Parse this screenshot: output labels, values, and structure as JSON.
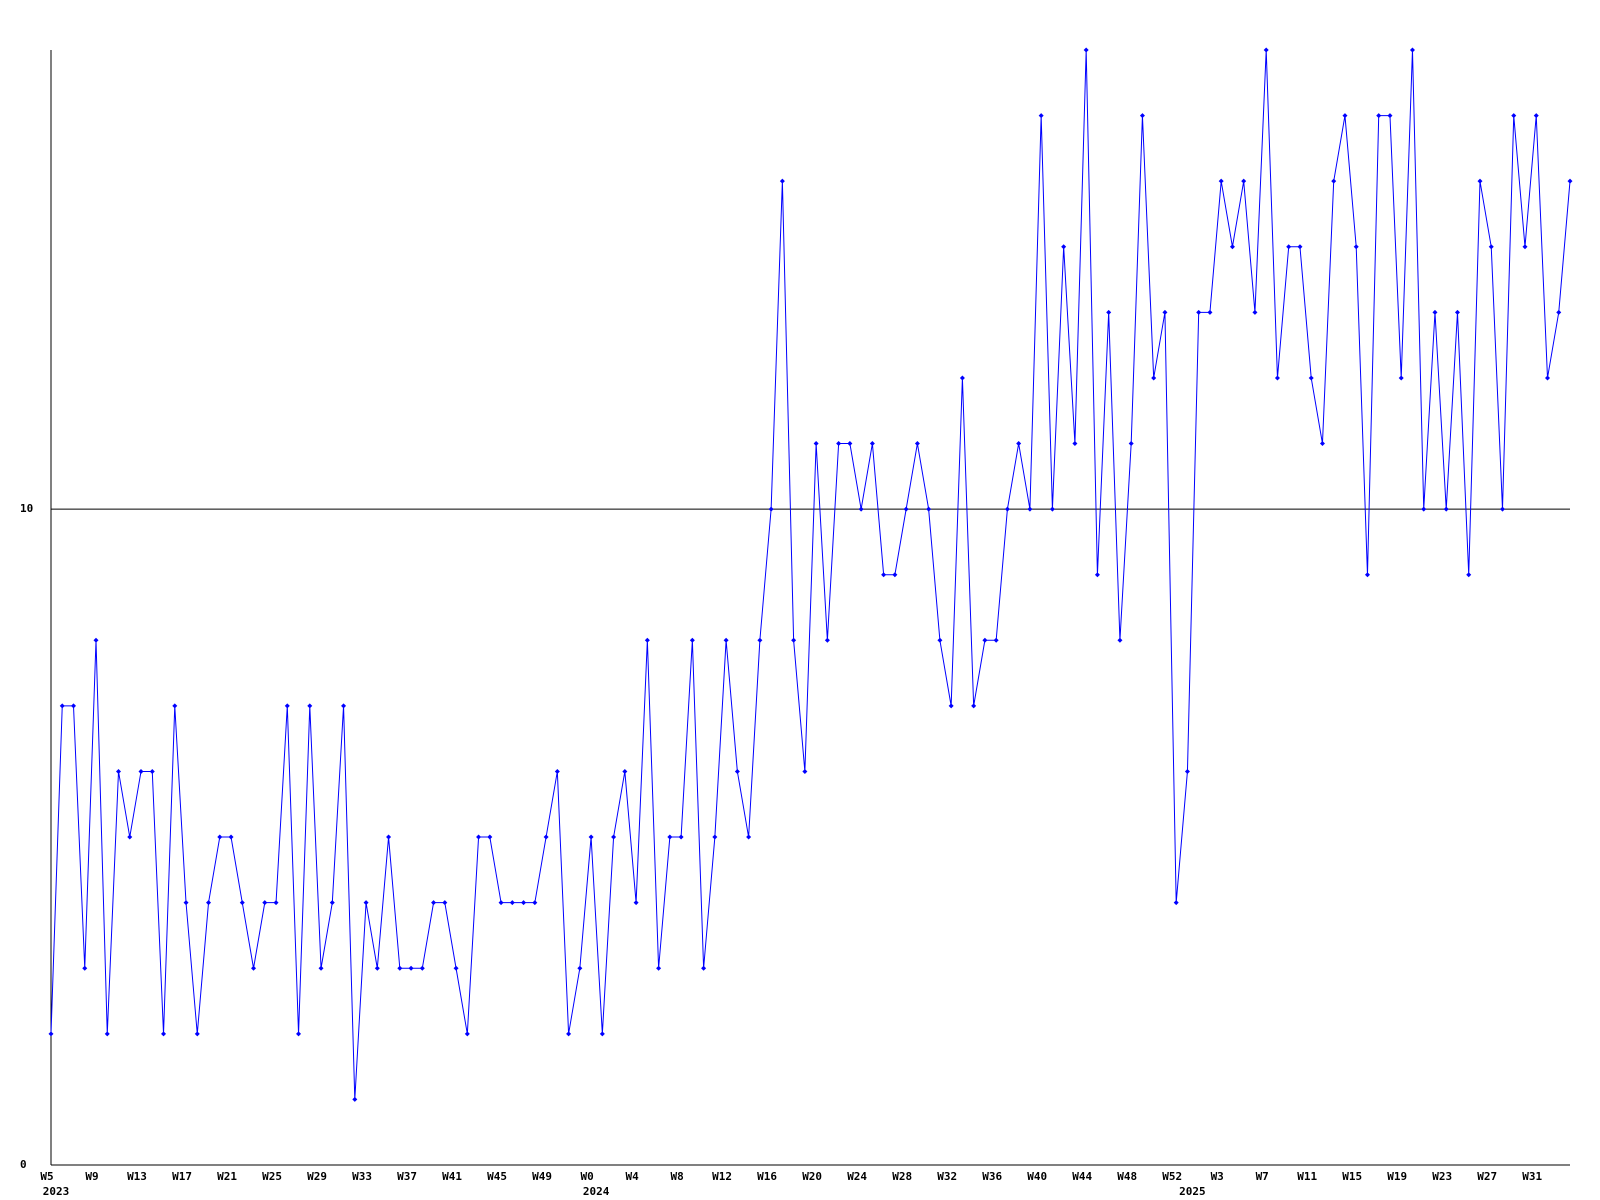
{
  "chart_data": {
    "type": "line",
    "categories": [
      "W5",
      null,
      null,
      null,
      "W9",
      null,
      null,
      null,
      "W13",
      null,
      null,
      null,
      "W17",
      null,
      null,
      null,
      "W21",
      null,
      null,
      null,
      "W25",
      null,
      null,
      null,
      "W29",
      null,
      null,
      null,
      "W33",
      null,
      null,
      null,
      "W37",
      null,
      null,
      null,
      "W41",
      null,
      null,
      null,
      "W45",
      null,
      null,
      null,
      "W49",
      null,
      null,
      null,
      "W0",
      null,
      null,
      null,
      "W4",
      null,
      null,
      null,
      "W8",
      null,
      null,
      null,
      "W12",
      null,
      null,
      null,
      "W16",
      null,
      null,
      null,
      "W20",
      null,
      null,
      null,
      "W24",
      null,
      null,
      null,
      "W28",
      null,
      null,
      null,
      "W32",
      null,
      null,
      null,
      "W36",
      null,
      null,
      null,
      "W40",
      null,
      null,
      null,
      "W44",
      null,
      null,
      null,
      "W48",
      null,
      null,
      null,
      "W52",
      null,
      null,
      null,
      "W3",
      null,
      null,
      null,
      "W7",
      null,
      null,
      null,
      "W11",
      null,
      null,
      null,
      "W15",
      null,
      null,
      null,
      "W19",
      null,
      null,
      null,
      "W23",
      null,
      null,
      null,
      "W27",
      null,
      null,
      null,
      "W31",
      null,
      null,
      null
    ],
    "years": [
      "2023",
      null,
      null,
      null,
      null,
      null,
      null,
      null,
      null,
      null,
      null,
      null,
      null,
      null,
      null,
      null,
      null,
      null,
      null,
      null,
      null,
      null,
      null,
      null,
      null,
      null,
      null,
      null,
      null,
      null,
      null,
      null,
      null,
      null,
      null,
      null,
      null,
      null,
      null,
      null,
      null,
      null,
      null,
      null,
      null,
      null,
      null,
      null,
      "2024",
      null,
      null,
      null,
      null,
      null,
      null,
      null,
      null,
      null,
      null,
      null,
      null,
      null,
      null,
      null,
      null,
      null,
      null,
      null,
      null,
      null,
      null,
      null,
      null,
      null,
      null,
      null,
      null,
      null,
      null,
      null,
      null,
      null,
      null,
      null,
      null,
      null,
      null,
      null,
      null,
      null,
      null,
      null,
      null,
      null,
      null,
      null,
      null,
      null,
      null,
      null,
      null,
      "2025",
      null,
      null,
      null,
      null,
      null,
      null,
      null,
      null,
      null,
      null,
      null,
      null,
      null,
      null,
      null,
      null,
      null,
      null,
      null,
      null,
      null,
      null,
      null,
      null,
      null,
      null,
      null,
      null,
      null,
      null,
      null,
      null,
      null
    ],
    "values": [
      2,
      7,
      7,
      3,
      8,
      2,
      6,
      5,
      6,
      6,
      2,
      7,
      4,
      2,
      4,
      5,
      5,
      4,
      3,
      4,
      4,
      7,
      2,
      7,
      3,
      4,
      7,
      1,
      4,
      3,
      5,
      3,
      3,
      3,
      4,
      4,
      3,
      2,
      5,
      5,
      4,
      4,
      4,
      4,
      5,
      6,
      2,
      3,
      5,
      2,
      5,
      6,
      4,
      8,
      3,
      5,
      5,
      8,
      3,
      5,
      8,
      6,
      5,
      8,
      10,
      15,
      8,
      6,
      11,
      8,
      11,
      11,
      10,
      11,
      9,
      9,
      10,
      11,
      10,
      8,
      7,
      12,
      7,
      8,
      8,
      10,
      11,
      10,
      16,
      10,
      14,
      11,
      17,
      9,
      13,
      8,
      11,
      16,
      12,
      13,
      4,
      6,
      13,
      13,
      15,
      14,
      15,
      13,
      17,
      12,
      14,
      14,
      12,
      11,
      15,
      16,
      14,
      9,
      16,
      16,
      12,
      17,
      10,
      13,
      10,
      13,
      9,
      15,
      14,
      10,
      16,
      14,
      16,
      12,
      13,
      15
    ],
    "color": "#0000ff",
    "ylim": [
      0,
      17
    ],
    "yticks": [
      0,
      10
    ],
    "grid": true
  }
}
